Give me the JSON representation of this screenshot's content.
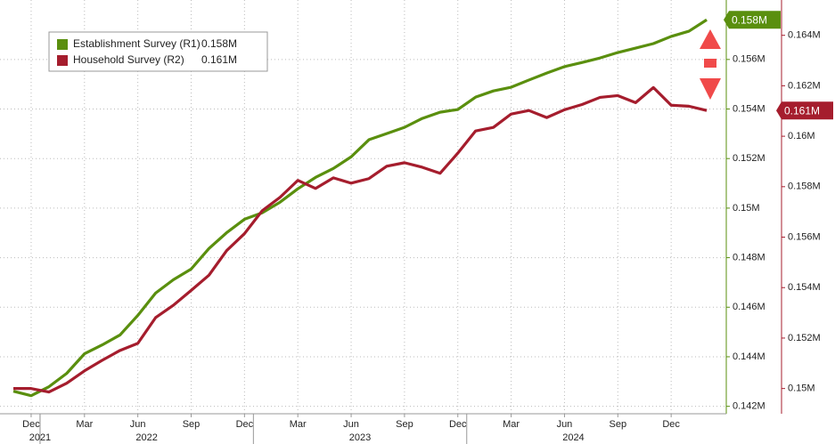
{
  "chart_data": {
    "type": "line",
    "categories": [
      null,
      "Dec",
      null,
      null,
      "Mar",
      null,
      null,
      "Jun",
      null,
      null,
      "Sep",
      null,
      null,
      "Dec",
      null,
      null,
      "Mar",
      null,
      null,
      "Jun",
      null,
      null,
      "Sep",
      null,
      null,
      "Dec",
      null,
      null,
      "Mar",
      null,
      null,
      "Jun",
      null,
      null,
      "Sep",
      null,
      null,
      "Dec",
      null,
      null
    ],
    "years": [
      "2021",
      "2022",
      "2023",
      "2024"
    ],
    "series": [
      {
        "name": "Establishment Survey (R1)",
        "legend_value": "0.158M",
        "color": "#5a8f0e",
        "axis": "y",
        "values": [
          0.14261,
          0.14243,
          0.14279,
          0.14333,
          0.14412,
          0.14448,
          0.14488,
          0.14567,
          0.14657,
          0.14711,
          0.14754,
          0.14837,
          0.14901,
          0.14955,
          0.14981,
          0.15024,
          0.15078,
          0.15124,
          0.1516,
          0.15207,
          0.15276,
          0.15301,
          0.15326,
          0.15362,
          0.15387,
          0.15398,
          0.15448,
          0.15473,
          0.15488,
          0.15517,
          0.15545,
          0.15571,
          0.15588,
          0.15606,
          0.15628,
          0.15646,
          0.15664,
          0.15693,
          0.15714,
          0.1576
        ]
      },
      {
        "name": "Household Survey (R2)",
        "legend_value": "0.161M",
        "color": "#a51d2d",
        "axis": "y2",
        "values": [
          0.15,
          0.15,
          0.14986,
          0.15021,
          0.1507,
          0.15112,
          0.15151,
          0.15179,
          0.15281,
          0.1533,
          0.15389,
          0.15449,
          0.15547,
          0.15614,
          0.15705,
          0.15758,
          0.15825,
          0.15793,
          0.15835,
          0.15814,
          0.15832,
          0.15881,
          0.15895,
          0.15877,
          0.15853,
          0.15933,
          0.16021,
          0.16035,
          0.16088,
          0.16102,
          0.16074,
          0.16105,
          0.16126,
          0.16154,
          0.16161,
          0.16133,
          0.16193,
          0.16123,
          0.16119,
          0.16102
        ]
      }
    ],
    "ylim": [
      0.1417,
      0.1584
    ],
    "yticks": [
      {
        "value": 0.142,
        "label": "0.142M"
      },
      {
        "value": 0.144,
        "label": "0.144M"
      },
      {
        "value": 0.146,
        "label": "0.146M"
      },
      {
        "value": 0.148,
        "label": "0.148M"
      },
      {
        "value": 0.15,
        "label": "0.15M"
      },
      {
        "value": 0.152,
        "label": "0.152M"
      },
      {
        "value": 0.154,
        "label": "0.154M"
      },
      {
        "value": 0.156,
        "label": "0.156M"
      }
    ],
    "y2lim": [
      0.149,
      0.1654
    ],
    "y2ticks": [
      {
        "value": 0.15,
        "label": "0.15M"
      },
      {
        "value": 0.152,
        "label": "0.152M"
      },
      {
        "value": 0.154,
        "label": "0.154M"
      },
      {
        "value": 0.156,
        "label": "0.156M"
      },
      {
        "value": 0.158,
        "label": "0.158M"
      },
      {
        "value": 0.16,
        "label": "0.16M"
      },
      {
        "value": 0.162,
        "label": "0.162M"
      },
      {
        "value": 0.164,
        "label": "0.164M"
      }
    ],
    "grid": true,
    "legend": "upper left"
  }
}
